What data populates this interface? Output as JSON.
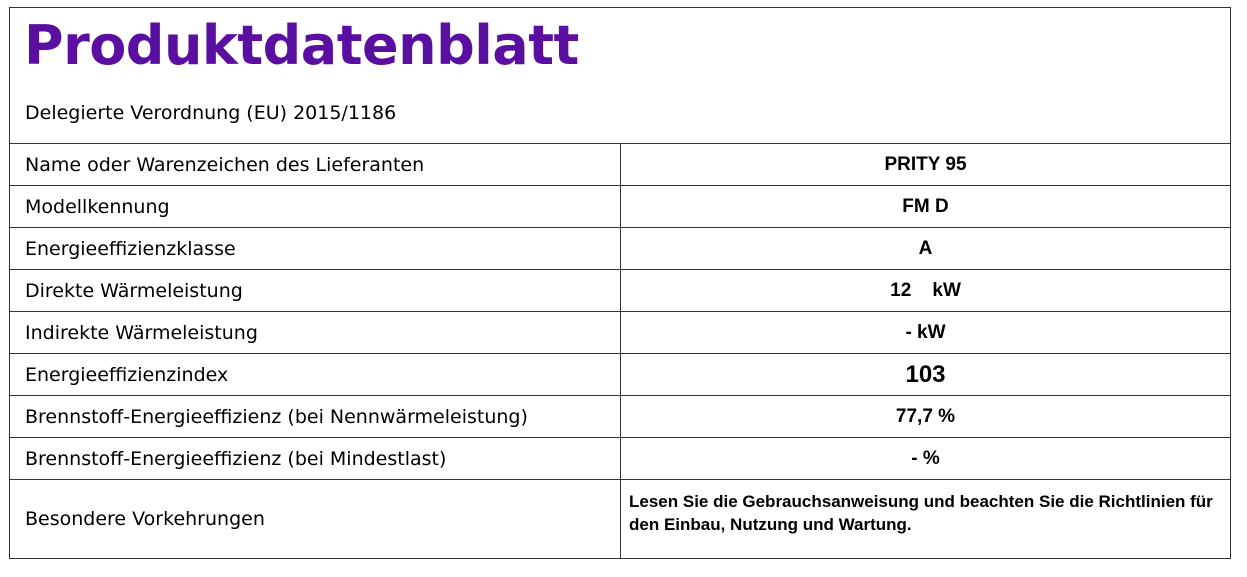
{
  "header": {
    "title": "Produktdatenblatt",
    "subtitle": "Delegierte Verordnung (EU) 2015/1186"
  },
  "rows": [
    {
      "label": "Name oder Warenzeichen des Lieferanten",
      "value": "PRITY 95"
    },
    {
      "label": "Modellkennung",
      "value": "FM D"
    },
    {
      "label": "Energieeffizienzklasse",
      "value": "A"
    },
    {
      "label": "Direkte Wärmeleistung",
      "value": "12    kW"
    },
    {
      "label": "Indirekte Wärmeleistung",
      "value": "- kW"
    },
    {
      "label": "Energieeffizienzindex",
      "value": "103"
    },
    {
      "label": "Brennstoff-Energieeffizienz (bei Nennwärmeleistung)",
      "value": "77,7 %"
    },
    {
      "label": "Brennstoff-Energieeffizienz (bei Mindestlast)",
      "value": "- %"
    },
    {
      "label": "Besondere Vorkehrungen",
      "value": "Lesen Sie die Gebrauchsanweisung und beachten Sie die Richtlinien für den Einbau, Nutzung und Wartung."
    }
  ],
  "colors": {
    "title": "#5a0fa0",
    "border": "#333333"
  }
}
